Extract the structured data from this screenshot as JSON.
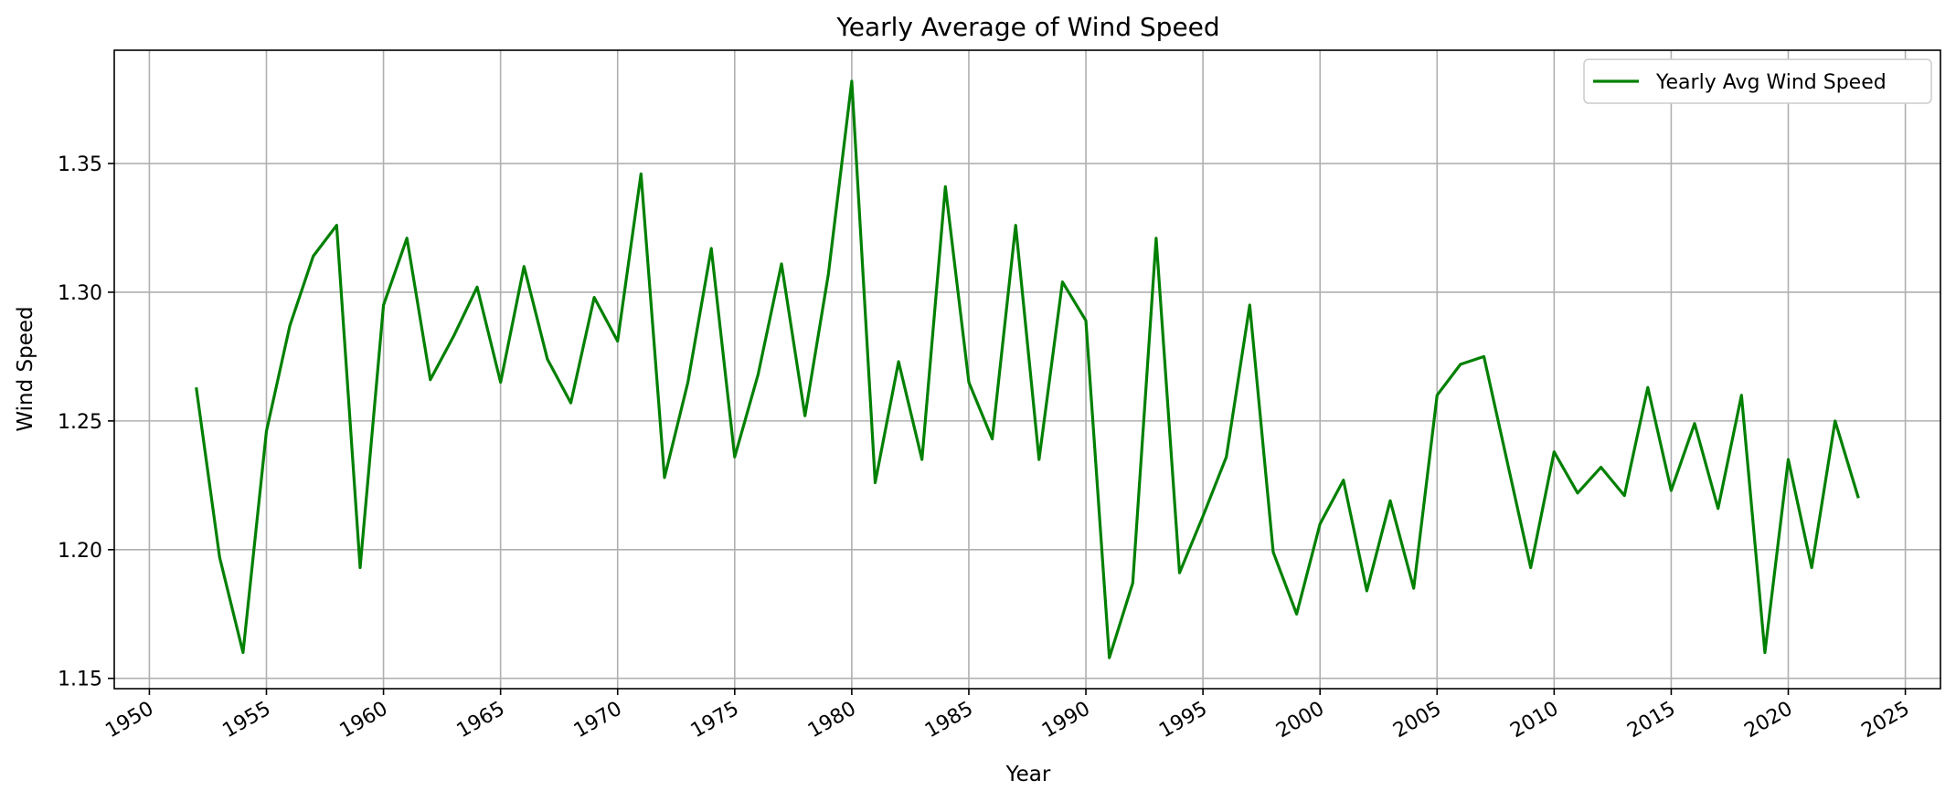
{
  "chart_data": {
    "type": "line",
    "title": "Yearly Average of Wind Speed",
    "xlabel": "Year",
    "ylabel": "Wind Speed",
    "xlim": [
      1948.5,
      2026.5
    ],
    "ylim": [
      1.146,
      1.394
    ],
    "xticks": [
      1950,
      1955,
      1960,
      1965,
      1970,
      1975,
      1980,
      1985,
      1990,
      1995,
      2000,
      2005,
      2010,
      2015,
      2020,
      2025
    ],
    "yticks": [
      1.15,
      1.2,
      1.25,
      1.3,
      1.35
    ],
    "ytick_labels": [
      "1.15",
      "1.20",
      "1.25",
      "1.30",
      "1.35"
    ],
    "grid": true,
    "legend_position": "top-right",
    "series": [
      {
        "name": "Yearly Avg Wind Speed",
        "color": "#008000",
        "x": [
          1952,
          1953,
          1954,
          1955,
          1956,
          1957,
          1958,
          1959,
          1960,
          1961,
          1962,
          1963,
          1964,
          1965,
          1966,
          1967,
          1968,
          1969,
          1970,
          1971,
          1972,
          1973,
          1974,
          1975,
          1976,
          1977,
          1978,
          1979,
          1980,
          1981,
          1982,
          1983,
          1984,
          1985,
          1986,
          1987,
          1988,
          1989,
          1990,
          1991,
          1992,
          1993,
          1994,
          1995,
          1996,
          1997,
          1998,
          1999,
          2000,
          2001,
          2002,
          2003,
          2004,
          2005,
          2006,
          2007,
          2008,
          2009,
          2010,
          2011,
          2012,
          2013,
          2014,
          2015,
          2016,
          2017,
          2018,
          2019,
          2020,
          2021,
          2022,
          2023
        ],
        "values": [
          1.263,
          1.197,
          1.16,
          1.246,
          1.287,
          1.314,
          1.326,
          1.193,
          1.295,
          1.321,
          1.266,
          1.283,
          1.302,
          1.265,
          1.31,
          1.274,
          1.257,
          1.298,
          1.281,
          1.346,
          1.228,
          1.265,
          1.317,
          1.236,
          1.268,
          1.311,
          1.252,
          1.307,
          1.382,
          1.226,
          1.273,
          1.235,
          1.341,
          1.265,
          1.243,
          1.326,
          1.235,
          1.304,
          1.289,
          1.158,
          1.187,
          1.321,
          1.191,
          1.213,
          1.236,
          1.295,
          1.199,
          1.175,
          1.21,
          1.227,
          1.184,
          1.219,
          1.185,
          1.26,
          1.272,
          1.275,
          1.234,
          1.193,
          1.238,
          1.222,
          1.232,
          1.221,
          1.263,
          1.223,
          1.249,
          1.216,
          1.26,
          1.16,
          1.235,
          1.193,
          1.25,
          1.22
        ]
      }
    ]
  }
}
